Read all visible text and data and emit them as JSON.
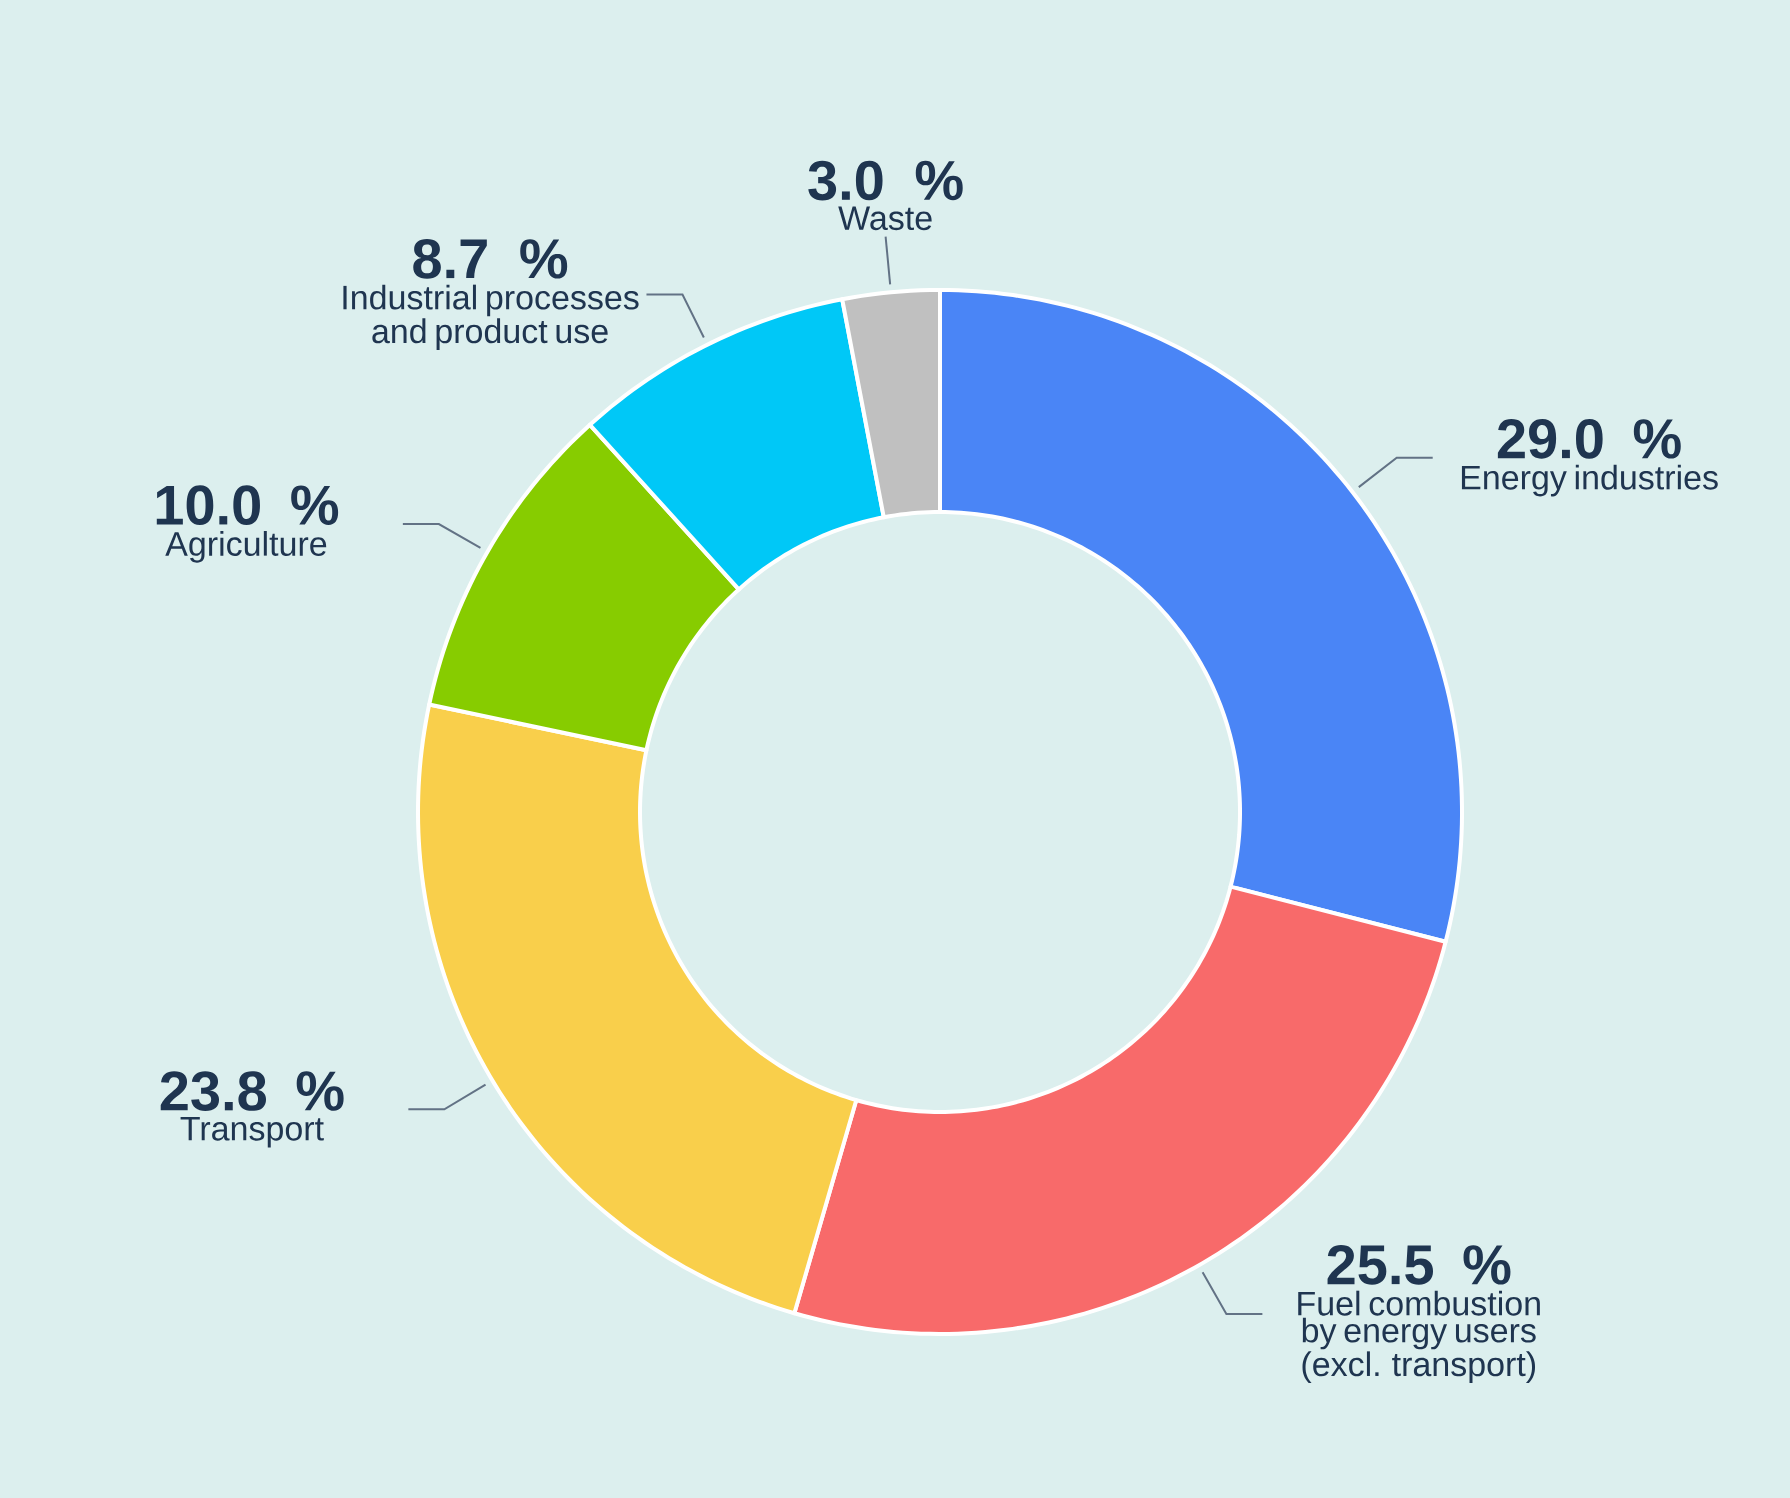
{
  "chart_data": {
    "type": "donut",
    "categories": [
      "Energy industries",
      "Fuel combustion by energy users (excl. transport)",
      "Transport",
      "Agriculture",
      "Industrial processes and product use",
      "Waste"
    ],
    "values": [
      29.0,
      25.5,
      23.8,
      10.0,
      8.7,
      3.0
    ],
    "value_labels": [
      "29.0 %",
      "25.5 %",
      "23.8 %",
      "10.0 %",
      "8.7 %",
      "3.0 %"
    ],
    "colors": [
      "#4a85f6",
      "#f86a6a",
      "#f9cf4b",
      "#87cc00",
      "#00c8f7",
      "#c0c0c0"
    ]
  }
}
